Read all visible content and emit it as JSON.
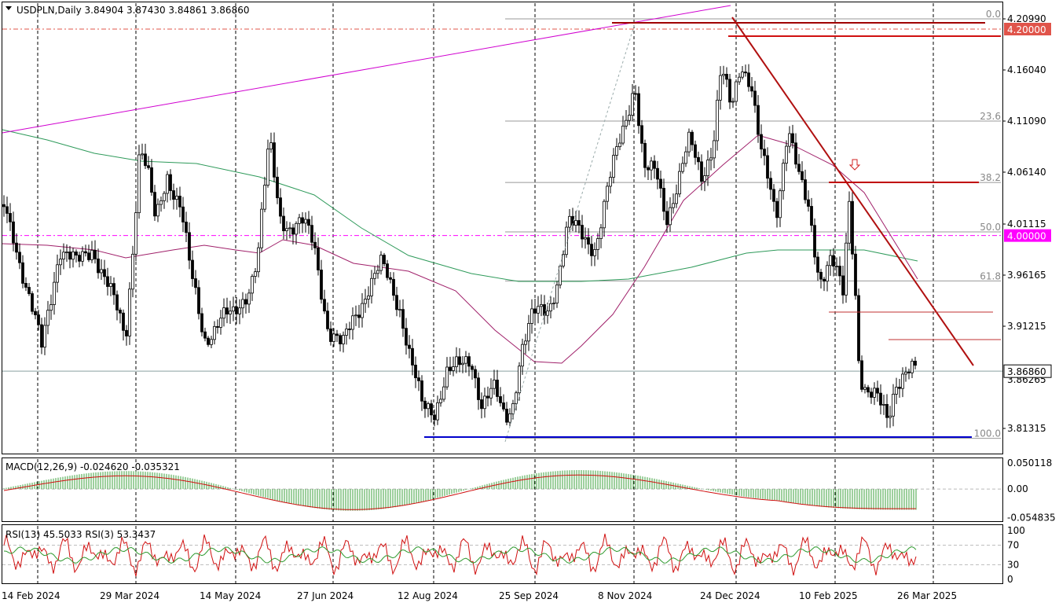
{
  "chart_data": {
    "type": "candlestick",
    "symbol": "USDPLN",
    "timeframe": "Daily",
    "header_text": "USDPLN,Daily  3.84904 3.87430 3.84861 3.86860",
    "ohlc": {
      "open": 3.84904,
      "high": 3.8743,
      "low": 3.84861,
      "close": 3.8686
    },
    "current_price_label": "3.86860",
    "x_ticks": [
      "14 Feb 2024",
      "29 Mar 2024",
      "14 May 2024",
      "27 Jun 2024",
      "12 Aug 2024",
      "25 Sep 2024",
      "8 Nov 2024",
      "24 Dec 2024",
      "10 Feb 2025",
      "26 Mar 2025"
    ],
    "price_axis_labels": [
      "4.20990",
      "4.16040",
      "4.11090",
      "4.06140",
      "4.01115",
      "3.96165",
      "3.91215",
      "3.81315"
    ],
    "price_axis_values": [
      4.2099,
      4.1604,
      4.1109,
      4.0614,
      4.01115,
      3.96165,
      3.91215,
      3.81315
    ],
    "partial_label": "3.86265",
    "ylim": [
      3.798,
      4.223
    ],
    "highlight_levels": [
      {
        "label": "4.20000",
        "value": 4.2,
        "color": "#e0544a"
      },
      {
        "label": "4.00000",
        "value": 4.0,
        "color": "#ff00ff"
      }
    ],
    "fibonacci": [
      {
        "label": "0.0",
        "value": 4.2099
      },
      {
        "label": "23.6",
        "value": 4.1109
      },
      {
        "label": "38.2",
        "value": 4.0514
      },
      {
        "label": "50.0",
        "value": 4.0035
      },
      {
        "label": "61.8",
        "value": 3.956
      },
      {
        "label": "100.0",
        "value": 3.8035
      }
    ],
    "macd": {
      "label": "MACD(12,26,9) -0.024620 -0.035321",
      "axis_labels": [
        "0.050118",
        "0.00",
        "-0.054835"
      ],
      "axis_values": [
        0.050118,
        0.0,
        -0.054835
      ],
      "ylim": [
        -0.062,
        0.058
      ]
    },
    "rsi": {
      "label": "RSI(13) 45.5033  RSI(3) 53.3437",
      "axis_labels": [
        "100",
        "70",
        "30",
        "0"
      ],
      "axis_values": [
        100,
        70,
        30,
        0
      ]
    },
    "series": [
      {
        "points": [
          [
            0,
            4.04
          ],
          [
            20,
            4.0
          ],
          [
            42,
            3.93
          ],
          [
            55,
            3.89
          ],
          [
            78,
            3.99
          ],
          [
            100,
            3.97
          ],
          [
            120,
            3.99
          ],
          [
            140,
            3.95
          ],
          [
            162,
            3.9
          ],
          [
            172,
            4.0
          ],
          [
            180,
            4.09
          ],
          [
            190,
            4.06
          ],
          [
            200,
            4.01
          ],
          [
            215,
            4.06
          ],
          [
            232,
            4.03
          ],
          [
            245,
            3.96
          ],
          [
            262,
            3.9
          ],
          [
            282,
            3.92
          ],
          [
            300,
            3.92
          ],
          [
            318,
            3.95
          ],
          [
            330,
            3.98
          ],
          [
            345,
            4.09
          ],
          [
            358,
            4.02
          ],
          [
            372,
            4.01
          ],
          [
            388,
            4.01
          ],
          [
            402,
            3.99
          ],
          [
            420,
            3.91
          ],
          [
            438,
            3.89
          ],
          [
            452,
            3.92
          ],
          [
            470,
            3.95
          ],
          [
            488,
            3.97
          ],
          [
            500,
            3.95
          ],
          [
            512,
            3.93
          ],
          [
            525,
            3.88
          ],
          [
            540,
            3.83
          ],
          [
            555,
            3.83
          ],
          [
            570,
            3.87
          ],
          [
            588,
            3.87
          ],
          [
            602,
            3.88
          ],
          [
            615,
            3.84
          ],
          [
            630,
            3.85
          ],
          [
            645,
            3.82
          ],
          [
            655,
            3.84
          ],
          [
            665,
            3.89
          ],
          [
            680,
            3.92
          ],
          [
            700,
            3.93
          ],
          [
            712,
            3.96
          ],
          [
            725,
            4.01
          ],
          [
            745,
            4.0
          ],
          [
            760,
            3.99
          ],
          [
            775,
            4.04
          ],
          [
            790,
            4.09
          ],
          [
            810,
            4.15
          ],
          [
            822,
            4.06
          ],
          [
            838,
            4.06
          ],
          [
            850,
            4.02
          ],
          [
            865,
            4.05
          ],
          [
            880,
            4.09
          ],
          [
            895,
            4.06
          ],
          [
            910,
            4.09
          ],
          [
            920,
            4.16
          ],
          [
            933,
            4.12
          ],
          [
            945,
            4.17
          ],
          [
            958,
            4.15
          ],
          [
            970,
            4.08
          ],
          [
            980,
            4.05
          ],
          [
            990,
            4.02
          ],
          [
            1005,
            4.11
          ],
          [
            1020,
            4.05
          ],
          [
            1032,
            4.02
          ],
          [
            1045,
            3.96
          ],
          [
            1060,
            3.98
          ],
          [
            1075,
            3.94
          ],
          [
            1083,
            4.03
          ],
          [
            1090,
            3.96
          ],
          [
            1096,
            3.87
          ],
          [
            1105,
            3.85
          ],
          [
            1118,
            3.84
          ],
          [
            1132,
            3.82
          ],
          [
            1142,
            3.86
          ],
          [
            1155,
            3.87
          ],
          [
            1168,
            3.867
          ]
        ]
      }
    ]
  }
}
